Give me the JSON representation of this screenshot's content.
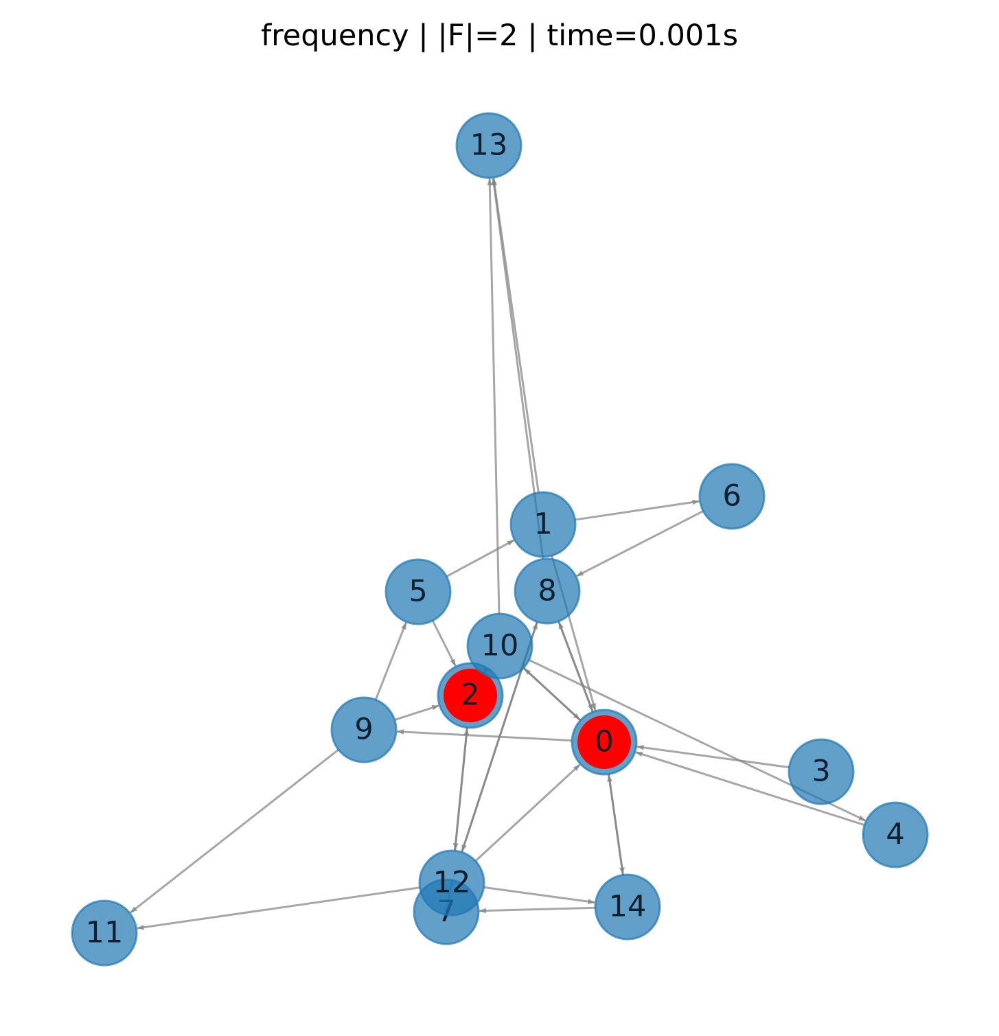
{
  "title": "frequency | |F|=2 | time=0.001s",
  "colors": {
    "node_fill": "#1f77b4",
    "node_opacity": 0.7,
    "highlight_fill": "#ff0000",
    "edge": "#808080",
    "label": "#0f1f2e"
  },
  "highlighted": [
    "0",
    "2"
  ],
  "nodes": [
    "0",
    "1",
    "2",
    "3",
    "4",
    "5",
    "6",
    "7",
    "8",
    "9",
    "10",
    "11",
    "12",
    "13",
    "14"
  ],
  "edges": [
    [
      "1",
      "6"
    ],
    [
      "1",
      "13"
    ],
    [
      "1",
      "0"
    ],
    [
      "5",
      "1"
    ],
    [
      "5",
      "2"
    ],
    [
      "6",
      "8"
    ],
    [
      "8",
      "0"
    ],
    [
      "8",
      "12"
    ],
    [
      "8",
      "13"
    ],
    [
      "10",
      "13"
    ],
    [
      "10",
      "4"
    ],
    [
      "10",
      "0"
    ],
    [
      "2",
      "10"
    ],
    [
      "2",
      "12"
    ],
    [
      "9",
      "5"
    ],
    [
      "9",
      "2"
    ],
    [
      "9",
      "11"
    ],
    [
      "0",
      "9"
    ],
    [
      "0",
      "8"
    ],
    [
      "0",
      "10"
    ],
    [
      "0",
      "14"
    ],
    [
      "3",
      "0"
    ],
    [
      "4",
      "0"
    ],
    [
      "12",
      "2"
    ],
    [
      "12",
      "8"
    ],
    [
      "12",
      "0"
    ],
    [
      "12",
      "14"
    ],
    [
      "12",
      "11"
    ],
    [
      "7",
      "12"
    ],
    [
      "14",
      "7"
    ],
    [
      "14",
      "0"
    ]
  ]
}
